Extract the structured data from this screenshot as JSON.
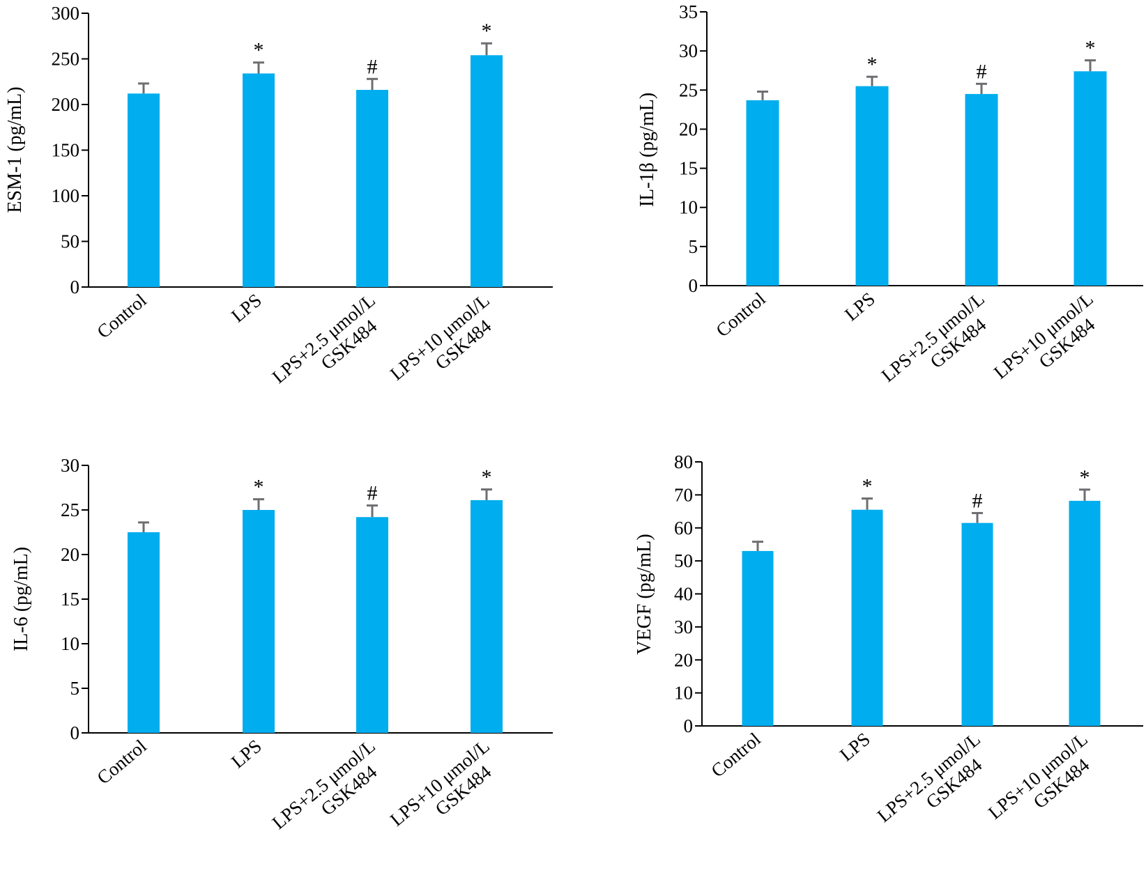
{
  "colors": {
    "bar": "#00adee",
    "error_bar": "#6d6e71",
    "axis": "#000000"
  },
  "chart_data": [
    {
      "type": "bar",
      "ylabel": "ESM-1 (pg/mL)",
      "ylim": [
        0,
        300
      ],
      "yticks": [
        0,
        50,
        100,
        150,
        200,
        250,
        300
      ],
      "categories": [
        [
          "Control"
        ],
        [
          "LPS"
        ],
        [
          "LPS+2.5 μmol/L",
          "GSK484"
        ],
        [
          "LPS+10 μmol/L",
          "GSK484"
        ]
      ],
      "values": [
        212,
        234,
        216,
        254
      ],
      "errors": [
        11,
        12,
        12,
        13
      ],
      "annotations": [
        "",
        "*",
        "#",
        "*"
      ]
    },
    {
      "type": "bar",
      "ylabel": "IL-1β (pg/mL)",
      "ylim": [
        0,
        35
      ],
      "yticks": [
        0,
        5,
        10,
        15,
        20,
        25,
        30,
        35
      ],
      "categories": [
        [
          "Control"
        ],
        [
          "LPS"
        ],
        [
          "LPS+2.5 μmol/L",
          "GSK484"
        ],
        [
          "LPS+10 μmol/L",
          "GSK484"
        ]
      ],
      "values": [
        23.7,
        25.5,
        24.5,
        27.4
      ],
      "errors": [
        1.1,
        1.2,
        1.3,
        1.4
      ],
      "annotations": [
        "",
        "*",
        "#",
        "*"
      ]
    },
    {
      "type": "bar",
      "ylabel": "IL-6 (pg/mL)",
      "ylim": [
        0,
        30
      ],
      "yticks": [
        0,
        5,
        10,
        15,
        20,
        25,
        30
      ],
      "categories": [
        [
          "Control"
        ],
        [
          "LPS"
        ],
        [
          "LPS+2.5 μmol/L",
          "GSK484"
        ],
        [
          "LPS+10 μmol/L",
          "GSK484"
        ]
      ],
      "values": [
        22.5,
        25.0,
        24.2,
        26.1
      ],
      "errors": [
        1.1,
        1.2,
        1.3,
        1.2
      ],
      "annotations": [
        "",
        "*",
        "#",
        "*"
      ]
    },
    {
      "type": "bar",
      "ylabel": "VEGF (pg/mL)",
      "ylim": [
        0,
        80
      ],
      "yticks": [
        0,
        10,
        20,
        30,
        40,
        50,
        60,
        70,
        80
      ],
      "categories": [
        [
          "Control"
        ],
        [
          "LPS"
        ],
        [
          "LPS+2.5 μmol/L",
          "GSK484"
        ],
        [
          "LPS+10 μmol/L",
          "GSK484"
        ]
      ],
      "values": [
        53,
        65.5,
        61.5,
        68.2
      ],
      "errors": [
        2.8,
        3.4,
        3.0,
        3.4
      ],
      "annotations": [
        "",
        "*",
        "#",
        "*"
      ]
    }
  ]
}
